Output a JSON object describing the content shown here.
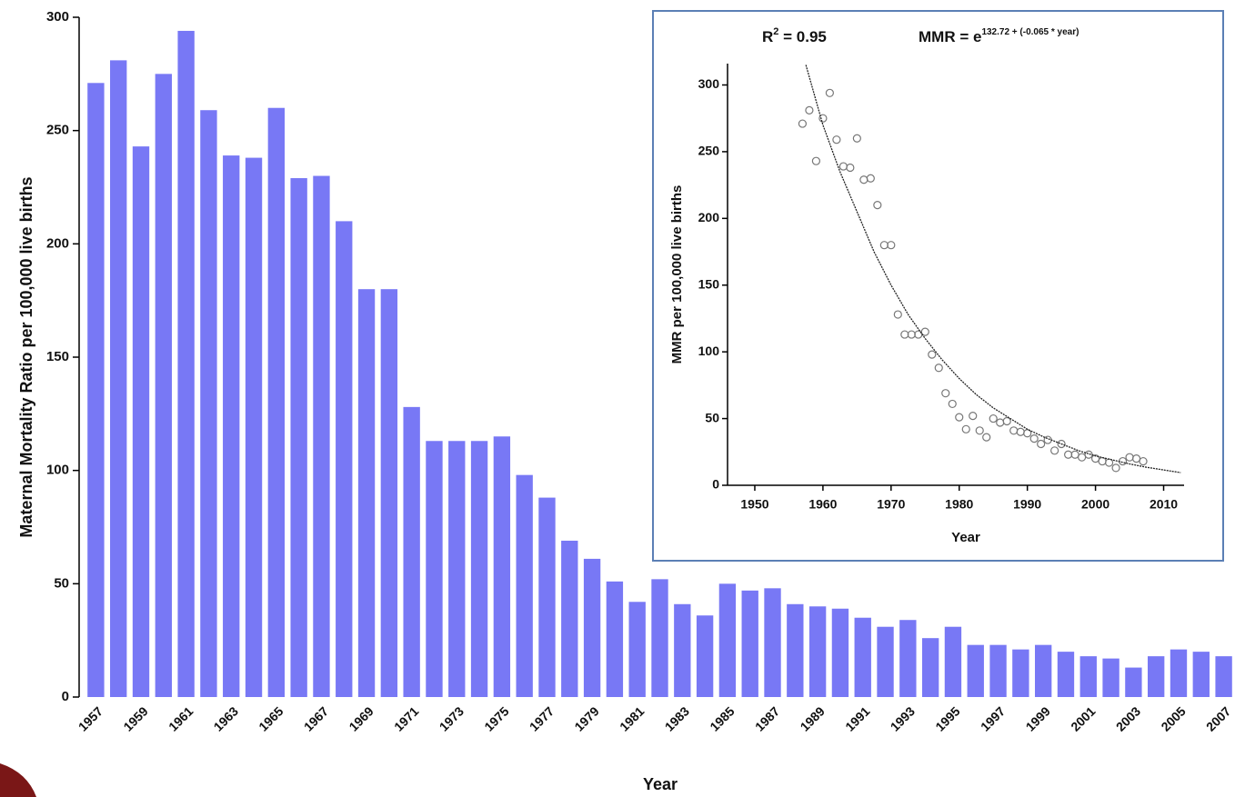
{
  "chart_data": [
    {
      "type": "bar",
      "categories": [
        "1957",
        null,
        "1959",
        null,
        "1961",
        null,
        "1963",
        null,
        "1965",
        null,
        "1967",
        null,
        "1969",
        null,
        "1971",
        null,
        "1973",
        null,
        "1975",
        null,
        "1977",
        null,
        "1979",
        null,
        "1981",
        null,
        "1983",
        null,
        "1985",
        null,
        "1987",
        null,
        "1989",
        null,
        "1991",
        null,
        "1993",
        null,
        "1995",
        null,
        "1997",
        null,
        "1999",
        null,
        "2001",
        null,
        "2003",
        null,
        "2005",
        null,
        "2007"
      ],
      "values": [
        271,
        281,
        243,
        275,
        294,
        259,
        239,
        238,
        260,
        229,
        230,
        210,
        180,
        180,
        128,
        113,
        113,
        113,
        115,
        98,
        88,
        69,
        61,
        51,
        42,
        52,
        41,
        36,
        50,
        47,
        48,
        41,
        40,
        39,
        35,
        31,
        34,
        26,
        31,
        23,
        23,
        21,
        23,
        20,
        18,
        17,
        13,
        18,
        21,
        20,
        18
      ],
      "color": "#7878f5",
      "ylim": [
        0,
        300
      ],
      "yticks": [
        0,
        50,
        100,
        150,
        200,
        250,
        300
      ],
      "xlabel": "Year",
      "ylabel": "Maternal Mortality Ratio per 100,000 live births"
    },
    {
      "type": "scatter",
      "series": [
        {
          "type": "scatter",
          "color": "#777777",
          "x": [
            1957,
            1958,
            1959,
            1960,
            1961,
            1962,
            1963,
            1964,
            1965,
            1966,
            1967,
            1968,
            1969,
            1970,
            1971,
            1972,
            1973,
            1974,
            1975,
            1976,
            1977,
            1978,
            1979,
            1980,
            1981,
            1982,
            1983,
            1984,
            1985,
            1986,
            1987,
            1988,
            1989,
            1990,
            1991,
            1992,
            1993,
            1994,
            1995,
            1996,
            1997,
            1998,
            1999,
            2000,
            2001,
            2002,
            2003,
            2004,
            2005,
            2006,
            2007
          ],
          "values": [
            271,
            281,
            243,
            275,
            294,
            259,
            239,
            238,
            260,
            229,
            230,
            210,
            180,
            180,
            128,
            113,
            113,
            113,
            115,
            98,
            88,
            69,
            61,
            51,
            42,
            52,
            41,
            36,
            50,
            47,
            48,
            41,
            40,
            39,
            35,
            31,
            34,
            26,
            31,
            23,
            23,
            21,
            23,
            20,
            18,
            17,
            13,
            18,
            21,
            20,
            18
          ]
        },
        {
          "type": "line",
          "color": "#222222",
          "x": [
            1957.5,
            1960,
            1962.5,
            1965,
            1967.5,
            1970,
            1972.5,
            1975,
            1977.5,
            1980,
            1982.5,
            1985,
            1987.5,
            1990,
            1992.5,
            1995,
            1997.5,
            2000,
            2002.5,
            2005,
            2007.5,
            2010,
            2012.5
          ],
          "values": [
            315,
            270,
            235,
            205,
            175,
            150,
            128,
            110,
            94,
            80,
            68,
            58,
            50,
            42,
            36,
            31,
            26,
            22,
            19,
            16,
            13.5,
            11.5,
            9.5
          ]
        }
      ],
      "xlim": [
        1946,
        2013
      ],
      "xticks": [
        1950,
        1960,
        1970,
        1980,
        1990,
        2000,
        2010
      ],
      "ylim": [
        0,
        316
      ],
      "yticks": [
        0,
        50,
        100,
        150,
        200,
        250,
        300
      ],
      "xlabel": "Year",
      "ylabel": "MMR per 100,000 live births",
      "annotations": {
        "r2": {
          "base": "R",
          "sup": "2",
          "rest": " = 0.95"
        },
        "equation": {
          "base": "MMR = e",
          "sup": "132.72 + (-0.065 * year)"
        }
      }
    }
  ]
}
